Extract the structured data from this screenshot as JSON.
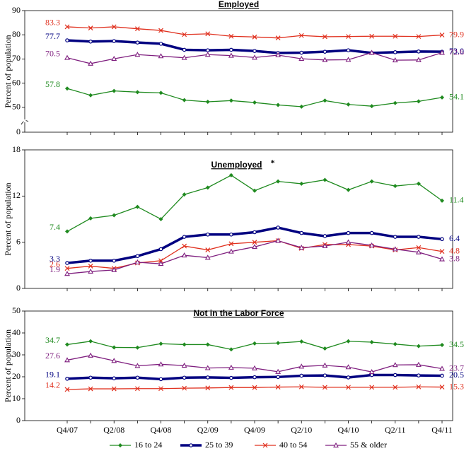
{
  "chart_data": {
    "type": "line",
    "categories": [
      "Q4/07",
      null,
      "Q2/08",
      null,
      "Q4/08",
      null,
      "Q2/09",
      null,
      "Q4/09",
      null,
      "Q2/10",
      null,
      "Q4/10",
      null,
      "Q2/11",
      null,
      "Q4/11"
    ],
    "series_styles": [
      {
        "name": "16 to 24",
        "color": "#1f8a1f",
        "marker": "diamond"
      },
      {
        "name": "25 to 39",
        "color": "#000080",
        "marker": "circle"
      },
      {
        "name": "40 to 54",
        "color": "#e0301e",
        "marker": "x"
      },
      {
        "name": "55 & older",
        "color": "#7f1f7f",
        "marker": "triangle"
      }
    ],
    "panels": [
      {
        "title": "Employed",
        "ylabel": "Percent of population",
        "ylim": [
          0,
          90
        ],
        "ybreak": [
          0,
          45
        ],
        "yticks": [
          0,
          50,
          60,
          70,
          80,
          90
        ],
        "series": [
          {
            "values": [
              57.8,
              55,
              56.8,
              56.3,
              56,
              53,
              52.3,
              52.8,
              52,
              51,
              50.3,
              52.8,
              51.2,
              50.5,
              51.8,
              52.5,
              54.1
            ],
            "value_labels": [
              "57.8",
              null,
              null,
              null,
              null,
              null,
              null,
              null,
              null,
              null,
              null,
              null,
              null,
              null,
              null,
              null,
              "54.1"
            ]
          },
          {
            "values": [
              77.7,
              77.2,
              77.4,
              76.8,
              76.3,
              73.8,
              73.6,
              73.8,
              73.3,
              72.5,
              72.6,
              73.0,
              73.6,
              72.5,
              72.8,
              73.1,
              73.0
            ],
            "value_labels": [
              "77.7",
              null,
              null,
              null,
              null,
              null,
              null,
              null,
              null,
              null,
              null,
              null,
              null,
              null,
              null,
              null,
              "73.0"
            ]
          },
          {
            "values": [
              83.3,
              82.8,
              83.3,
              82.5,
              81.8,
              80.1,
              80.4,
              79.4,
              79.1,
              78.7,
              79.7,
              79.2,
              79.3,
              79.4,
              79.4,
              79.3,
              79.9
            ],
            "value_labels": [
              "83.3",
              null,
              null,
              null,
              null,
              null,
              null,
              null,
              null,
              null,
              null,
              null,
              null,
              null,
              null,
              null,
              "79.9"
            ]
          },
          {
            "values": [
              70.5,
              68.1,
              70.1,
              71.8,
              71.2,
              70.5,
              71.8,
              71.4,
              70.6,
              71.6,
              70.1,
              69.6,
              69.7,
              72.6,
              69.5,
              69.6,
              72.6
            ],
            "value_labels": [
              "70.5",
              null,
              null,
              null,
              null,
              null,
              null,
              null,
              null,
              null,
              null,
              null,
              null,
              null,
              null,
              null,
              "72.6"
            ]
          }
        ]
      },
      {
        "title": "Unemployed",
        "title_note": "*",
        "ylabel": "Percent of population",
        "ylim": [
          0,
          18
        ],
        "yticks": [
          0,
          6,
          12,
          18
        ],
        "series": [
          {
            "values": [
              7.4,
              9.1,
              9.5,
              10.6,
              9.0,
              12.2,
              13.1,
              14.7,
              12.7,
              13.9,
              13.6,
              14.1,
              12.8,
              13.9,
              13.3,
              13.6,
              11.4
            ],
            "value_labels": [
              "7.4",
              null,
              null,
              null,
              null,
              null,
              null,
              null,
              null,
              null,
              null,
              null,
              null,
              null,
              null,
              null,
              "11.4"
            ]
          },
          {
            "values": [
              3.3,
              3.6,
              3.6,
              4.2,
              5.1,
              6.7,
              7.0,
              7.0,
              7.3,
              7.9,
              7.2,
              6.8,
              7.2,
              7.2,
              6.7,
              6.7,
              6.4
            ],
            "value_labels": [
              "3.3",
              null,
              null,
              null,
              null,
              null,
              null,
              null,
              null,
              null,
              null,
              null,
              null,
              null,
              null,
              null,
              "6.4"
            ]
          },
          {
            "values": [
              2.6,
              2.9,
              2.6,
              3.3,
              3.6,
              5.5,
              5.0,
              5.8,
              6.0,
              6.2,
              5.2,
              5.7,
              5.7,
              5.5,
              5.0,
              5.3,
              4.8
            ],
            "value_labels": [
              "2.6",
              null,
              null,
              null,
              null,
              null,
              null,
              null,
              null,
              null,
              null,
              null,
              null,
              null,
              null,
              null,
              "4.8"
            ]
          },
          {
            "values": [
              1.9,
              2.2,
              2.4,
              3.4,
              3.2,
              4.3,
              4.0,
              4.8,
              5.4,
              6.2,
              5.3,
              5.5,
              6.0,
              5.6,
              5.1,
              4.7,
              3.8
            ],
            "value_labels": [
              "1.9",
              null,
              null,
              null,
              null,
              null,
              null,
              null,
              null,
              null,
              null,
              null,
              null,
              null,
              null,
              null,
              "3.8"
            ]
          }
        ]
      },
      {
        "title": "Not in the Labor Force",
        "ylabel": "Percent of population",
        "ylim": [
          0,
          50
        ],
        "yticks": [
          0,
          10,
          20,
          30,
          40,
          50
        ],
        "series": [
          {
            "values": [
              34.7,
              36.2,
              33.4,
              33.3,
              35.1,
              34.7,
              34.7,
              32.5,
              35.2,
              35.4,
              36.1,
              32.9,
              36.2,
              35.8,
              34.9,
              34.0,
              34.5
            ],
            "value_labels": [
              "34.7",
              null,
              null,
              null,
              null,
              null,
              null,
              null,
              null,
              null,
              null,
              null,
              null,
              null,
              null,
              null,
              "34.5"
            ]
          },
          {
            "values": [
              19.1,
              19.6,
              19.3,
              19.6,
              18.9,
              19.6,
              19.7,
              19.5,
              19.8,
              19.9,
              20.5,
              20.6,
              19.7,
              20.8,
              20.8,
              20.6,
              20.5
            ],
            "value_labels": [
              "19.1",
              null,
              null,
              null,
              null,
              null,
              null,
              null,
              null,
              null,
              null,
              null,
              null,
              null,
              null,
              null,
              "20.5"
            ]
          },
          {
            "values": [
              14.2,
              14.5,
              14.5,
              14.6,
              14.6,
              14.8,
              14.9,
              15.1,
              15.1,
              15.3,
              15.4,
              15.2,
              15.2,
              15.2,
              15.2,
              15.4,
              15.3
            ],
            "value_labels": [
              "14.2",
              null,
              null,
              null,
              null,
              null,
              null,
              null,
              null,
              null,
              null,
              null,
              null,
              null,
              null,
              null,
              "15.3"
            ]
          },
          {
            "values": [
              27.6,
              29.7,
              27.3,
              25.0,
              25.7,
              25.1,
              24.0,
              24.2,
              23.9,
              22.3,
              24.7,
              25.2,
              24.4,
              22.2,
              25.4,
              25.5,
              23.7
            ],
            "value_labels": [
              "27.6",
              null,
              null,
              null,
              null,
              null,
              null,
              null,
              null,
              null,
              null,
              null,
              null,
              null,
              null,
              null,
              "23.7"
            ]
          }
        ]
      }
    ]
  }
}
